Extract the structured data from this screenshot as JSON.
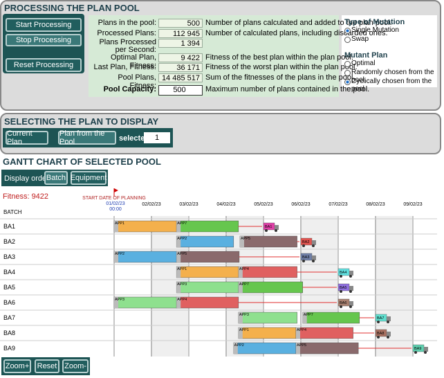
{
  "processing": {
    "title": "PROCESSING THE PLAN POOL",
    "buttons": [
      "Start Processing",
      "Stop Processing",
      "Reset Processing"
    ],
    "stats": [
      {
        "label": "Plans in the pool:",
        "value": "500",
        "desc": "Number of plans calculated and added to the plan pool."
      },
      {
        "label": "Processed Plans:",
        "value": "112 945",
        "desc": "Number of calculated plans, including discarded ones."
      },
      {
        "label": "Plans Processed per Second:",
        "value": "1 394",
        "desc": null
      },
      {
        "label": "Optimal Plan, Fitness:",
        "value": "9 422",
        "desc": "Fitness of the best plan within the plan pool."
      },
      {
        "label": "Last Plan, Fitness:",
        "value": "36 171",
        "desc": "Fitness of the worst plan within the plan pool."
      },
      {
        "label": "Pool Plans, Fitness:",
        "value": "14 485 517",
        "desc": "Sum of the fitnesses of the plans in the pool."
      },
      {
        "label": "Pool Capacity:",
        "value": "500",
        "desc": "Maximum number of plans contained in the pool."
      }
    ],
    "mutation": {
      "title": "Type of Mutation",
      "options": [
        "Single Mutation",
        "Swap"
      ],
      "selected": 0
    },
    "mutant": {
      "title": "Mutant Plan",
      "options": [
        "Optimal",
        "Randomly chosen from the pool",
        "Cyclically chosen from the pool"
      ],
      "selected": 2
    }
  },
  "selecting": {
    "title": "SELECTING THE PLAN TO DISPLAY",
    "buttons": [
      "Current Plan",
      "Plan from the Pool"
    ],
    "selected_label": "selected:",
    "selected_value": "1"
  },
  "gantt": {
    "title": "GANTT CHART OF SELECTED POOL",
    "order_label": "Display order:",
    "order_buttons": [
      "Batch",
      "Equipment"
    ],
    "fitness": "Fitness: 9422",
    "start_label": "START DATE OF PLANNING",
    "start_date": "01/02/23",
    "start_time": "00:00",
    "dates": [
      "02/02/23",
      "03/02/23",
      "04/02/23",
      "05/02/23",
      "06/02/23",
      "07/02/23",
      "08/02/23",
      "09/02/23"
    ],
    "row_header": "BATCH",
    "rows": [
      {
        "label": "BA1",
        "tasks": [
          {
            "label": "APP1",
            "start": 0,
            "end": 1.67,
            "color": "#f4b04c"
          },
          {
            "label": "APP7",
            "start": 1.67,
            "end": 3.33,
            "color": "#66c64e"
          }
        ],
        "truck": {
          "label": "BA1",
          "day": 4,
          "color": "#e040a8"
        }
      },
      {
        "label": "BA2",
        "tasks": [
          {
            "label": "APP2",
            "start": 1.67,
            "end": 3.2,
            "color": "#5ab0e0"
          },
          {
            "label": "APP5",
            "start": 3.37,
            "end": 4.9,
            "color": "#8a6a6c"
          }
        ],
        "truck": {
          "label": "BA2",
          "day": 5,
          "color": "#e05450"
        }
      },
      {
        "label": "BA3",
        "tasks": [
          {
            "label": "APP2",
            "start": 0,
            "end": 1.67,
            "color": "#5ab0e0"
          },
          {
            "label": "APP5",
            "start": 1.67,
            "end": 3.35,
            "color": "#8a6a6c"
          }
        ],
        "truck": {
          "label": "BA3",
          "day": 5,
          "color": "#7080a8"
        }
      },
      {
        "label": "BA4",
        "tasks": [
          {
            "label": "APP1",
            "start": 1.67,
            "end": 3.33,
            "color": "#f4b04c"
          },
          {
            "label": "APP4",
            "start": 3.33,
            "end": 4.9,
            "color": "#e06060"
          }
        ],
        "truck": {
          "label": "BA4",
          "day": 6,
          "color": "#60e0e0"
        }
      },
      {
        "label": "BA5",
        "tasks": [
          {
            "label": "APP3",
            "start": 1.67,
            "end": 3.33,
            "color": "#8ee08e"
          },
          {
            "label": "APP7",
            "start": 3.33,
            "end": 5.05,
            "color": "#66c64e"
          }
        ],
        "truck": {
          "label": "BA5",
          "day": 6,
          "color": "#9070e0"
        }
      },
      {
        "label": "BA6",
        "tasks": [
          {
            "label": "APP3",
            "start": 0,
            "end": 1.67,
            "color": "#8ee08e"
          },
          {
            "label": "APP4",
            "start": 1.67,
            "end": 3.33,
            "color": "#e06060"
          }
        ],
        "truck": {
          "label": "BA6",
          "day": 6,
          "color": "#a88070"
        }
      },
      {
        "label": "BA7",
        "tasks": [
          {
            "label": "APP3",
            "start": 3.33,
            "end": 4.9,
            "color": "#8ee08e"
          },
          {
            "label": "APP7",
            "start": 5.05,
            "end": 6.57,
            "color": "#66c64e"
          }
        ],
        "truck": {
          "label": "BA7",
          "day": 7,
          "color": "#60e0d0"
        }
      },
      {
        "label": "BA8",
        "tasks": [
          {
            "label": "APP1",
            "start": 3.33,
            "end": 4.87,
            "color": "#f4b04c"
          },
          {
            "label": "APP4",
            "start": 4.87,
            "end": 6.4,
            "color": "#e06060"
          }
        ],
        "truck": {
          "label": "BA8",
          "day": 7,
          "color": "#a87060"
        }
      },
      {
        "label": "BA9",
        "tasks": [
          {
            "label": "APP2",
            "start": 3.2,
            "end": 4.87,
            "color": "#5ab0e0"
          },
          {
            "label": "APP5",
            "start": 4.87,
            "end": 6.54,
            "color": "#8a6a6c"
          }
        ],
        "truck": {
          "label": "BA9",
          "day": 8,
          "color": "#60d0b0"
        }
      }
    ],
    "zoom_buttons": [
      "Zoom+",
      "Reset",
      "Zoom-"
    ]
  }
}
